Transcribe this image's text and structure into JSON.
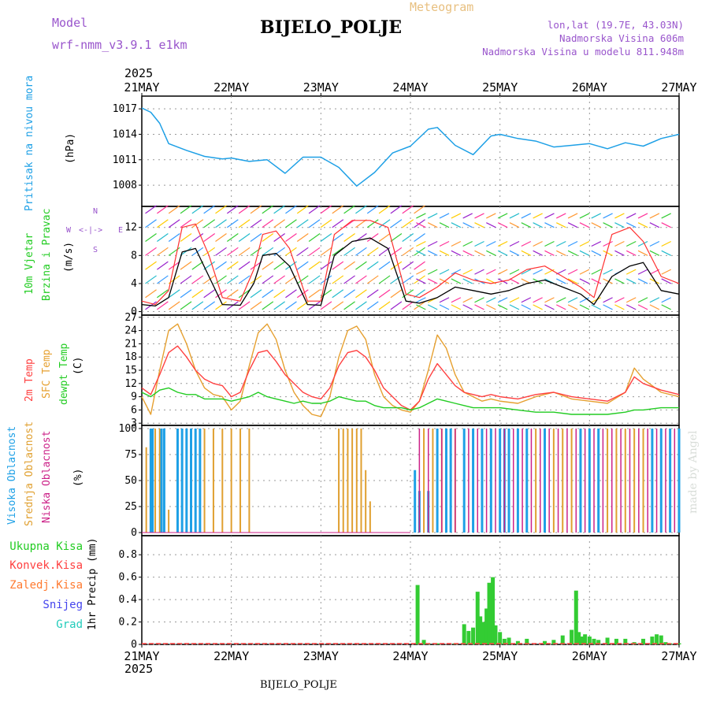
{
  "header": {
    "model_label": "Model",
    "model_name": "wrf-nmm_v3.9.1  e1km",
    "meteogram": "Meteogram",
    "station": "BIJELO_POLJE",
    "lonlat": "lon,lat (19.7E, 43.03N)",
    "elev": "Nadmorska Visina 606m",
    "elev_model": "Nadmorska Visina u modelu 811.948m",
    "year_top": "2025",
    "year_bottom": "2025",
    "footer_station": "BIJELO_POLJE",
    "credit": "made by Angel"
  },
  "colors": {
    "pressure": "#1ea0e6",
    "wind_mean": "#000000",
    "gust": "#ff3030",
    "temp2m": "#ff4040",
    "sfc": "#e6a030",
    "dew": "#22cc22",
    "high_cloud": "#1ea0e6",
    "mid_cloud": "#e0a030",
    "low_cloud": "#cc2288",
    "precip": "#33cc33",
    "conv": "#ff4040"
  },
  "chart_data": [
    {
      "type": "line",
      "name": "pressure",
      "ylabel_main": "Pritisak na nivou mora",
      "ylabel_unit": "(hPa)",
      "ylim": [
        1005.5,
        1018.5
      ],
      "yticks": [
        "1008",
        "1011",
        "1014",
        "1017"
      ],
      "x_labels": [
        "21MAY",
        "22MAY",
        "23MAY",
        "24MAY",
        "25MAY",
        "26MAY",
        "27MAY"
      ],
      "x_days": [
        0,
        0.1,
        0.2,
        0.3,
        0.5,
        0.7,
        0.9,
        1.0,
        1.2,
        1.4,
        1.6,
        1.8,
        2.0,
        2.2,
        2.4,
        2.6,
        2.8,
        3.0,
        3.2,
        3.3,
        3.5,
        3.7,
        3.9,
        4.0,
        4.2,
        4.4,
        4.6,
        4.8,
        5.0,
        5.2,
        5.4,
        5.6,
        5.8,
        6.0
      ],
      "values": [
        1017.1,
        1016.6,
        1015.3,
        1012.9,
        1012.1,
        1011.4,
        1011.1,
        1011.2,
        1010.8,
        1011.0,
        1009.4,
        1011.3,
        1011.3,
        1010.1,
        1007.9,
        1009.5,
        1011.8,
        1012.6,
        1014.6,
        1014.8,
        1012.7,
        1011.6,
        1013.8,
        1014.0,
        1013.5,
        1013.2,
        1012.5,
        1012.7,
        1012.9,
        1012.3,
        1013.0,
        1012.6,
        1013.5,
        1014.0
      ]
    },
    {
      "type": "line",
      "name": "wind",
      "ylabel_main": "10m Vjetar",
      "ylabel_sub": "Brzina i Pravac",
      "ylabel_unit": "(m/s)",
      "compass": {
        "w": "W",
        "e": "E",
        "n": "N",
        "s": "S",
        "arrows": "<-|->"
      },
      "ylim": [
        -0.5,
        15
      ],
      "yticks": [
        "0",
        "4",
        "8",
        "12"
      ],
      "series": [
        {
          "key": "mean",
          "x": [
            0,
            0.15,
            0.3,
            0.45,
            0.6,
            0.75,
            0.9,
            1.1,
            1.25,
            1.35,
            1.5,
            1.65,
            1.85,
            2.0,
            2.15,
            2.35,
            2.55,
            2.75,
            2.95,
            3.1,
            3.3,
            3.5,
            3.7,
            3.9,
            4.1,
            4.3,
            4.5,
            4.7,
            4.9,
            5.05,
            5.25,
            5.45,
            5.6,
            5.8,
            6.0
          ],
          "y": [
            1.0,
            0.8,
            2.0,
            8.5,
            9.0,
            5.0,
            1.0,
            0.9,
            4.0,
            8.0,
            8.3,
            6.5,
            1.0,
            0.9,
            8.0,
            10.0,
            10.5,
            9.0,
            1.5,
            1.2,
            2.0,
            3.5,
            3.0,
            2.5,
            3.0,
            4.0,
            4.5,
            3.5,
            2.5,
            1.0,
            5.0,
            6.5,
            7.0,
            3.0,
            2.5
          ]
        },
        {
          "key": "gust",
          "x": [
            0,
            0.15,
            0.3,
            0.45,
            0.6,
            0.75,
            0.9,
            1.1,
            1.25,
            1.35,
            1.5,
            1.65,
            1.85,
            2.0,
            2.15,
            2.35,
            2.55,
            2.75,
            2.95,
            3.1,
            3.3,
            3.5,
            3.7,
            3.9,
            4.1,
            4.3,
            4.5,
            4.7,
            4.9,
            5.05,
            5.25,
            5.45,
            5.6,
            5.8,
            6.0
          ],
          "y": [
            1.5,
            1.0,
            3.0,
            12.0,
            12.5,
            8.0,
            2.0,
            1.5,
            6.0,
            11.0,
            11.5,
            9.0,
            1.5,
            1.5,
            11.0,
            13.0,
            13.0,
            12.0,
            2.5,
            2.0,
            3.5,
            5.5,
            4.5,
            4.0,
            4.5,
            6.0,
            6.5,
            5.0,
            3.5,
            2.0,
            11.0,
            12.0,
            10.0,
            5.0,
            4.0
          ]
        }
      ]
    },
    {
      "type": "line",
      "name": "temperature",
      "ylabel_a": "2m Temp",
      "ylabel_b": "SFC Temp",
      "ylabel_c": "dewpt Temp",
      "ylabel_unit": "(C)",
      "ylim": [
        2.5,
        27.5
      ],
      "yticks": [
        "3",
        "6",
        "9",
        "12",
        "15",
        "18",
        "21",
        "24",
        "27"
      ],
      "x": [
        0,
        0.1,
        0.2,
        0.3,
        0.4,
        0.5,
        0.6,
        0.7,
        0.8,
        0.9,
        1.0,
        1.1,
        1.2,
        1.3,
        1.4,
        1.5,
        1.6,
        1.7,
        1.8,
        1.9,
        2.0,
        2.1,
        2.2,
        2.3,
        2.4,
        2.5,
        2.6,
        2.7,
        2.8,
        2.9,
        3.0,
        3.1,
        3.2,
        3.3,
        3.4,
        3.5,
        3.6,
        3.7,
        3.8,
        3.9,
        4.0,
        4.2,
        4.4,
        4.6,
        4.8,
        5.0,
        5.2,
        5.4,
        5.5,
        5.6,
        5.8,
        6.0
      ],
      "series": [
        {
          "key": "temp2m",
          "values": [
            11.0,
            9.5,
            14.0,
            19.0,
            20.5,
            18.0,
            15.0,
            13.0,
            12.0,
            11.5,
            9.0,
            10.0,
            15.0,
            19.0,
            19.5,
            17.0,
            14.0,
            12.0,
            10.0,
            9.0,
            8.5,
            11.0,
            16.0,
            19.0,
            19.5,
            18.0,
            15.0,
            11.0,
            9.0,
            7.0,
            6.0,
            8.0,
            13.0,
            16.5,
            14.0,
            11.5,
            10.0,
            9.5,
            9.0,
            9.5,
            9.0,
            8.5,
            9.5,
            10.0,
            9.0,
            8.5,
            8.0,
            10.0,
            13.5,
            12.0,
            10.5,
            9.5
          ]
        },
        {
          "key": "sfc",
          "values": [
            9.0,
            5.0,
            15.0,
            24.0,
            25.5,
            21.0,
            15.0,
            11.0,
            9.5,
            9.0,
            6.0,
            8.0,
            16.0,
            23.5,
            25.5,
            22.0,
            15.0,
            10.0,
            7.0,
            5.0,
            4.5,
            9.0,
            18.0,
            24.0,
            25.0,
            22.0,
            14.0,
            9.0,
            7.0,
            6.0,
            5.5,
            8.0,
            15.0,
            23.0,
            20.0,
            14.0,
            10.0,
            9.0,
            8.0,
            8.5,
            8.0,
            7.5,
            9.0,
            10.0,
            8.5,
            8.0,
            7.5,
            10.0,
            15.5,
            13.0,
            10.0,
            9.0
          ]
        },
        {
          "key": "dew",
          "values": [
            10.0,
            9.0,
            10.5,
            11.0,
            10.0,
            9.5,
            9.5,
            8.5,
            8.5,
            8.5,
            8.0,
            8.5,
            9.0,
            10.0,
            9.0,
            8.5,
            8.0,
            7.5,
            8.0,
            7.5,
            7.5,
            8.0,
            9.0,
            8.5,
            8.0,
            8.0,
            7.0,
            6.5,
            6.5,
            6.5,
            6.0,
            6.5,
            7.5,
            8.5,
            8.0,
            7.5,
            7.0,
            6.5,
            6.5,
            6.5,
            6.5,
            6.0,
            5.5,
            5.5,
            5.0,
            5.0,
            5.0,
            5.5,
            6.0,
            6.0,
            6.5,
            6.5
          ]
        }
      ]
    },
    {
      "type": "bar",
      "name": "cloud",
      "ylabel_a": "Visoka Oblacnost",
      "ylabel_b": "Srednja Oblacnost",
      "ylabel_c": "Niska Oblacnost",
      "ylabel_unit": "(%)",
      "ylim": [
        -3,
        103
      ],
      "yticks": [
        "0",
        "25",
        "50",
        "75",
        "100"
      ],
      "series": [
        {
          "key": "high",
          "x": [
            0.1,
            0.12,
            0.22,
            0.25,
            0.4,
            0.45,
            0.5,
            0.55,
            0.6,
            0.65,
            3.05,
            3.1,
            3.2,
            3.3,
            3.4,
            3.45,
            3.6,
            3.7,
            3.8,
            3.9,
            4.0,
            4.05,
            4.1,
            4.2,
            4.3,
            4.5,
            4.9,
            5.0,
            5.1,
            5.7,
            5.8,
            5.9,
            6.0
          ],
          "y": [
            100,
            100,
            100,
            100,
            100,
            100,
            100,
            100,
            100,
            100,
            60,
            40,
            40,
            100,
            100,
            100,
            100,
            100,
            100,
            100,
            100,
            100,
            100,
            100,
            100,
            100,
            100,
            100,
            100,
            100,
            100,
            100,
            100
          ]
        },
        {
          "key": "mid",
          "x": [
            0.05,
            0.15,
            0.2,
            0.3,
            0.7,
            0.8,
            0.9,
            1.0,
            1.1,
            1.2,
            2.2,
            2.25,
            2.3,
            2.35,
            2.4,
            2.45,
            2.5,
            2.55,
            3.15,
            3.25,
            3.35,
            3.5,
            3.6,
            3.7,
            3.8,
            3.9,
            4.0,
            4.1,
            4.2,
            4.3,
            4.4,
            4.5,
            4.6,
            4.7,
            4.8,
            4.9,
            5.0,
            5.1,
            5.2,
            5.3,
            5.4,
            5.5,
            5.6,
            5.7,
            5.8,
            5.9,
            6.0
          ],
          "y": [
            82,
            100,
            100,
            22,
            100,
            100,
            100,
            100,
            100,
            100,
            100,
            100,
            100,
            100,
            100,
            100,
            60,
            30,
            100,
            100,
            100,
            100,
            100,
            100,
            100,
            100,
            100,
            100,
            100,
            100,
            100,
            100,
            100,
            100,
            100,
            100,
            100,
            100,
            100,
            100,
            100,
            100,
            100,
            100,
            100,
            100,
            100
          ]
        },
        {
          "key": "low",
          "x": [
            3.1,
            3.2,
            3.35,
            3.5,
            3.65,
            3.75,
            3.85,
            3.95,
            4.05,
            4.15,
            4.25,
            4.35,
            4.45,
            4.55,
            4.65,
            4.75,
            4.85,
            4.95,
            5.05,
            5.15,
            5.25,
            5.35,
            5.45,
            5.55,
            5.65,
            5.75,
            5.85,
            5.95
          ],
          "y": [
            100,
            100,
            100,
            100,
            100,
            100,
            100,
            100,
            100,
            100,
            100,
            100,
            100,
            100,
            100,
            100,
            100,
            100,
            100,
            100,
            100,
            100,
            100,
            100,
            100,
            100,
            100,
            100
          ]
        }
      ]
    },
    {
      "type": "bar",
      "name": "precipitation",
      "legend": [
        "Ukupna Kisa",
        "Konvek.Kisa",
        "Zaledj.Kisa",
        "Snijeg",
        "Grad"
      ],
      "ylabel_unit": "1hr Precip (mm)",
      "ylim": [
        0,
        0.97
      ],
      "yticks": [
        "0",
        "0.2",
        "0.4",
        "0.6",
        "0.8"
      ],
      "x_labels": [
        "21MAY",
        "22MAY",
        "23MAY",
        "24MAY",
        "25MAY",
        "26MAY",
        "27MAY"
      ],
      "x": [
        3.08,
        3.15,
        3.2,
        3.3,
        3.5,
        3.6,
        3.65,
        3.7,
        3.75,
        3.78,
        3.82,
        3.85,
        3.88,
        3.92,
        3.95,
        4.0,
        4.05,
        4.1,
        4.2,
        4.3,
        4.5,
        4.6,
        4.7,
        4.8,
        4.85,
        4.88,
        4.92,
        4.95,
        5.0,
        5.05,
        5.1,
        5.2,
        5.3,
        5.4,
        5.5,
        5.6,
        5.7,
        5.75,
        5.8,
        5.85,
        5.9,
        6.0
      ],
      "values": [
        0.53,
        0.04,
        0.01,
        0.01,
        0.01,
        0.18,
        0.12,
        0.15,
        0.47,
        0.25,
        0.2,
        0.32,
        0.55,
        0.6,
        0.17,
        0.11,
        0.05,
        0.06,
        0.03,
        0.05,
        0.03,
        0.04,
        0.08,
        0.13,
        0.48,
        0.11,
        0.07,
        0.09,
        0.07,
        0.05,
        0.04,
        0.06,
        0.05,
        0.05,
        0.02,
        0.05,
        0.07,
        0.09,
        0.08,
        0.02,
        0.01,
        0.01
      ]
    }
  ]
}
